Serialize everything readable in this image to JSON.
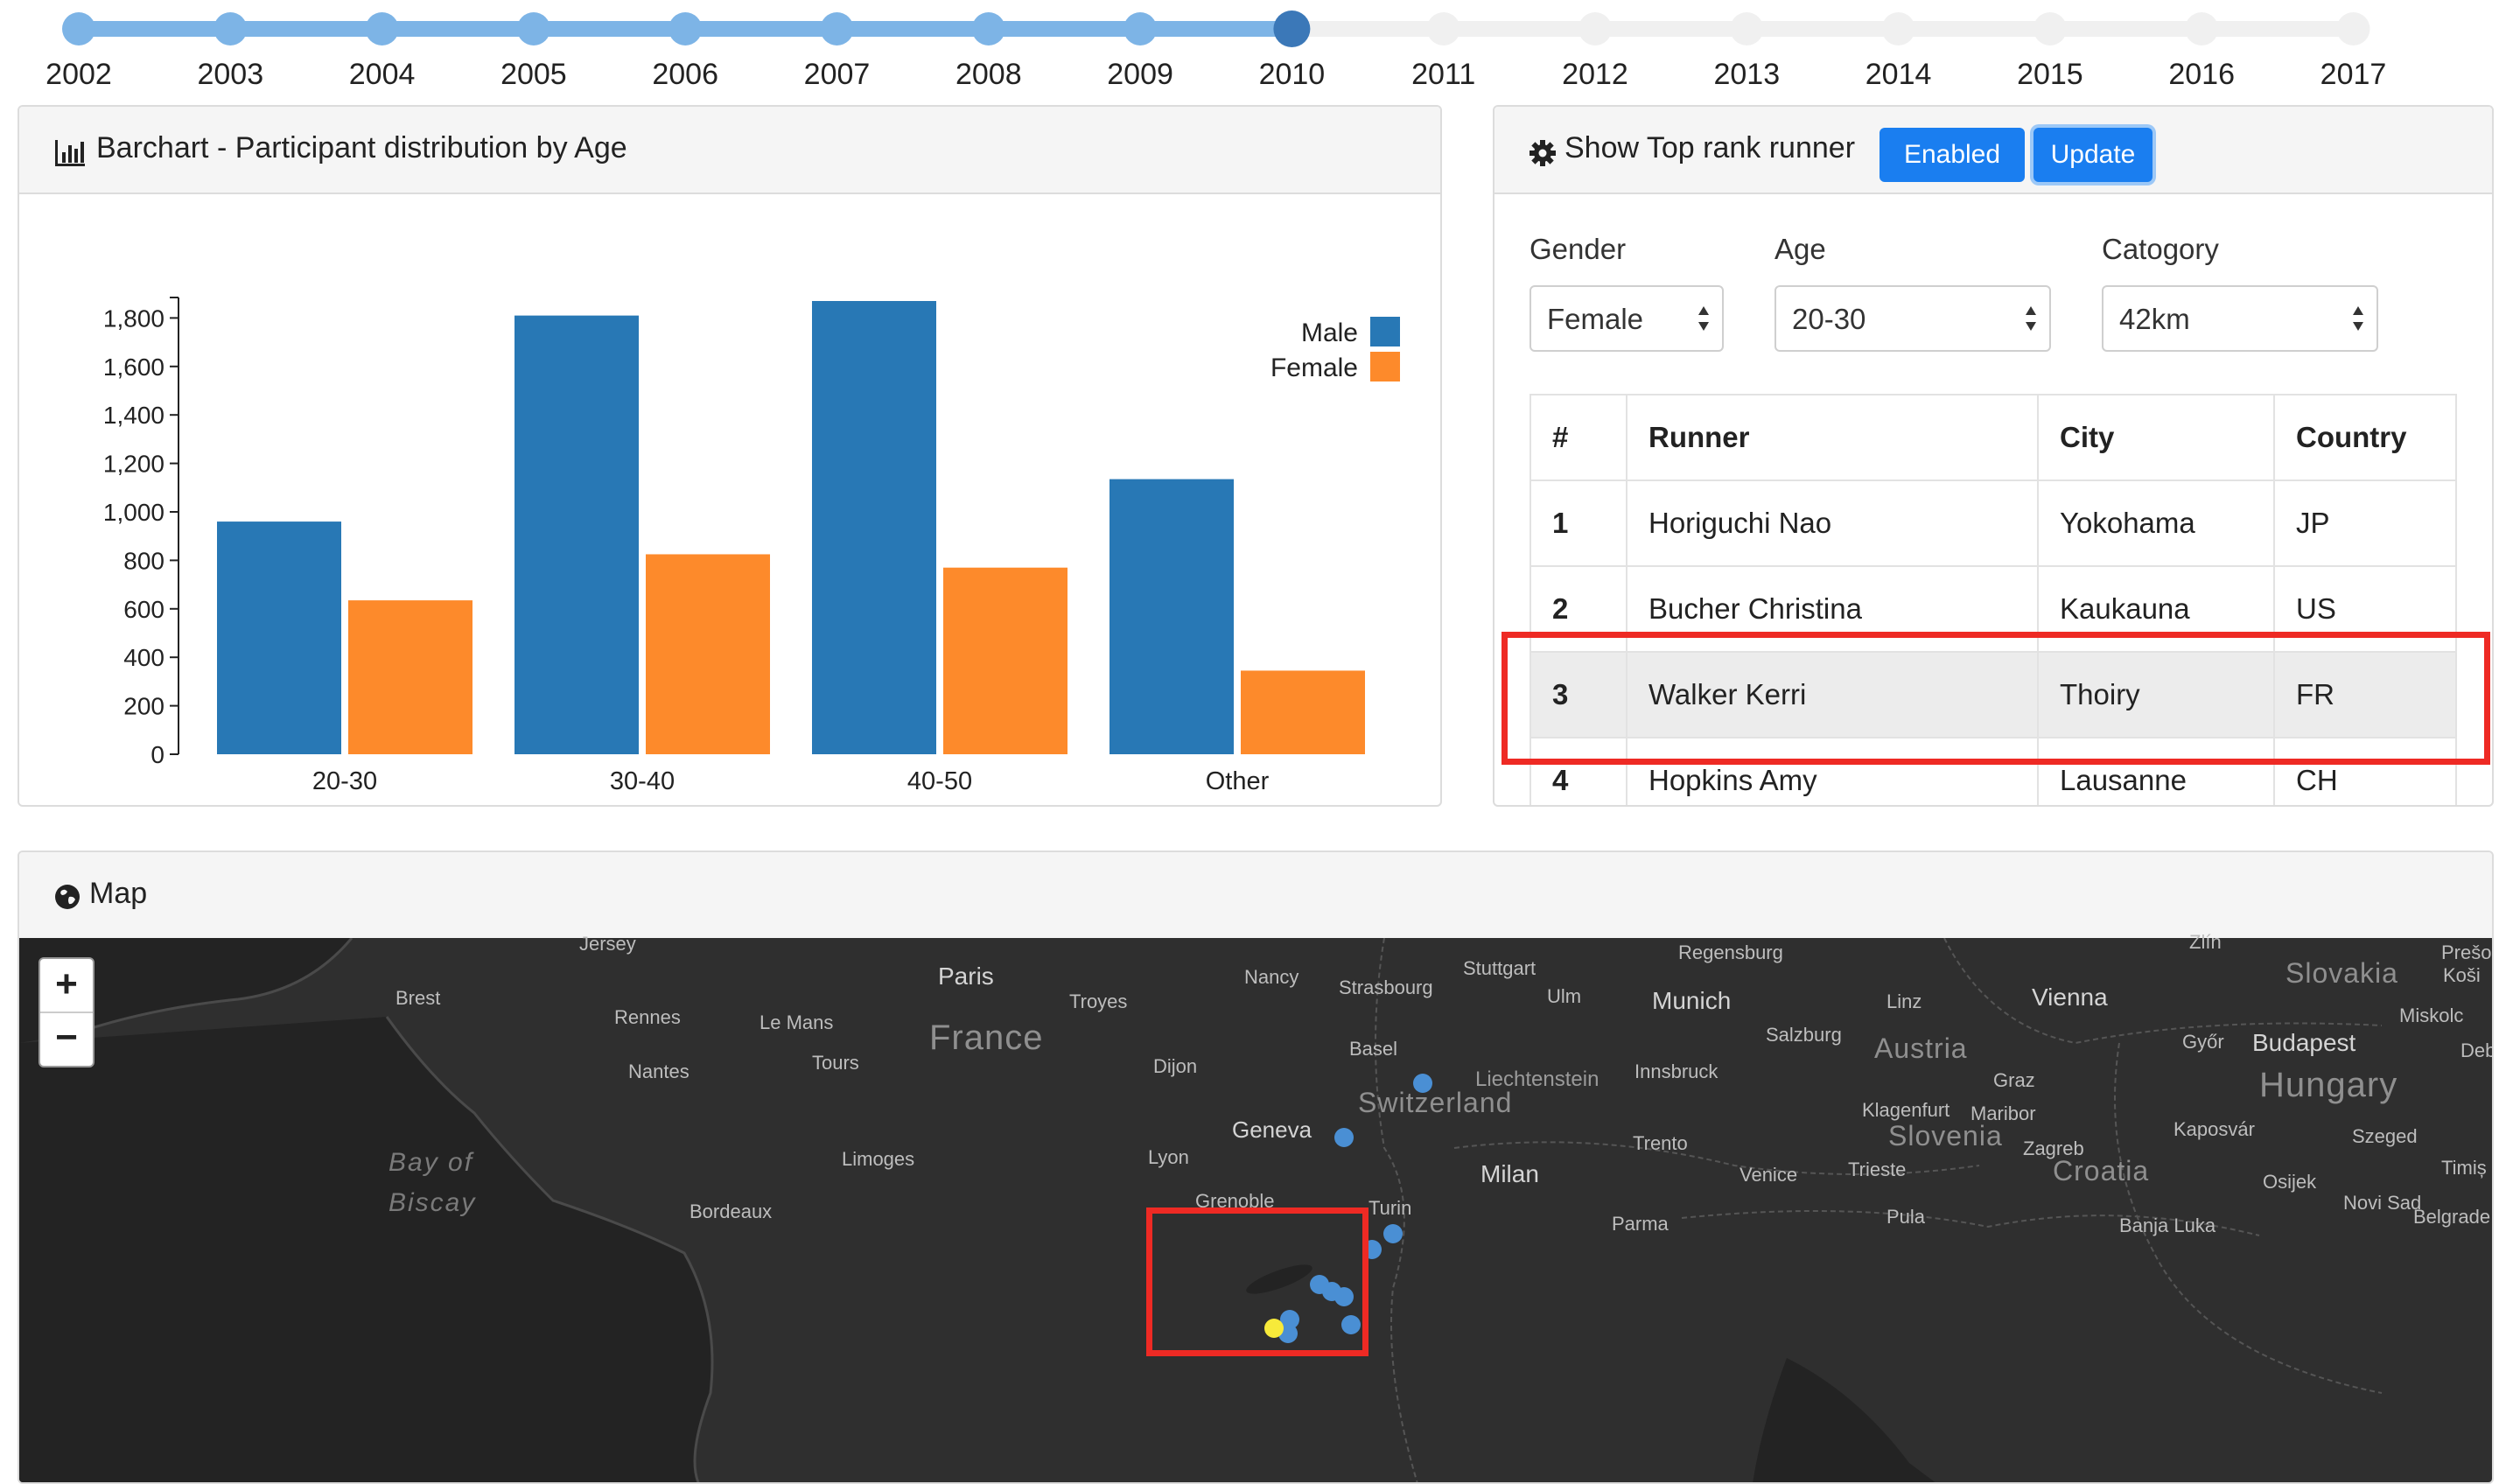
{
  "timeline": {
    "years": [
      "2002",
      "2003",
      "2004",
      "2005",
      "2006",
      "2007",
      "2008",
      "2009",
      "2010",
      "2011",
      "2012",
      "2013",
      "2014",
      "2015",
      "2016",
      "2017"
    ],
    "selected": "2010",
    "active_color": "#7db4e6",
    "selected_color": "#3b78b8",
    "inactive_color": "#f0f0f0"
  },
  "barchart": {
    "title": "Barchart - Participant distribution by Age",
    "icon": "bar-chart-icon"
  },
  "chart_data": {
    "type": "bar",
    "categories": [
      "20-30",
      "30-40",
      "40-50",
      "Other"
    ],
    "series": [
      {
        "name": "Male",
        "color": "#2878b5",
        "values": [
          960,
          1810,
          1870,
          1135
        ]
      },
      {
        "name": "Female",
        "color": "#fd8a2b",
        "values": [
          635,
          825,
          770,
          345
        ]
      }
    ],
    "ylim": [
      0,
      1870
    ],
    "yticks": [
      0,
      200,
      400,
      600,
      800,
      1000,
      1200,
      1400,
      1600,
      1800
    ],
    "ytick_labels": [
      "0",
      "200",
      "400",
      "600",
      "800",
      "1,000",
      "1,200",
      "1,400",
      "1,600",
      "1,800"
    ],
    "legend_position": "top-right",
    "grid": false
  },
  "rank": {
    "title": "Show Top rank runner",
    "icon": "gear-icon",
    "enabled_label": "Enabled",
    "update_label": "Update",
    "filters": {
      "gender": {
        "label": "Gender",
        "value": "Female"
      },
      "age": {
        "label": "Age",
        "value": "20-30"
      },
      "category": {
        "label": "Catogory",
        "value": "42km"
      }
    },
    "table": {
      "headers": [
        "#",
        "Runner",
        "City",
        "Country"
      ],
      "rows": [
        {
          "rank": "1",
          "runner": "Horiguchi Nao",
          "city": "Yokohama",
          "country": "JP"
        },
        {
          "rank": "2",
          "runner": "Bucher Christina",
          "city": "Kaukauna",
          "country": "US"
        },
        {
          "rank": "3",
          "runner": "Walker Kerri",
          "city": "Thoiry",
          "country": "FR"
        },
        {
          "rank": "4",
          "runner": "Hopkins Amy",
          "city": "Lausanne",
          "country": "CH"
        }
      ],
      "highlighted_rank": "3"
    }
  },
  "map": {
    "title": "Map",
    "icon": "globe-icon",
    "zoom_in": "+",
    "zoom_out": "−",
    "labels": {
      "jersey": "Jersey",
      "brest": "Brest",
      "rennes": "Rennes",
      "le_mans": "Le Mans",
      "paris": "Paris",
      "nancy": "Nancy",
      "strasbourg": "Strasbourg",
      "stuttgart": "Stuttgart",
      "troyes": "Troyes",
      "france": "France",
      "tours": "Tours",
      "nantes": "Nantes",
      "dijon": "Dijon",
      "basel": "Basel",
      "ulm": "Ulm",
      "munich": "Munich",
      "regensburg": "Regensburg",
      "linz": "Linz",
      "vienna": "Vienna",
      "salzburg": "Salzburg",
      "austria": "Austria",
      "innsbruck": "Innsbruck",
      "liechtenstein": "Liechtenstein",
      "switzerland": "Switzerland",
      "geneva": "Geneva",
      "lyon": "Lyon",
      "limoges": "Limoges",
      "bay_of": "Bay of",
      "biscay": "Biscay",
      "bordeaux": "Bordeaux",
      "grenoble": "Grenoble",
      "turin": "Turin",
      "milan": "Milan",
      "trento": "Trento",
      "venice": "Venice",
      "trieste": "Trieste",
      "graz": "Graz",
      "klagenfurt": "Klagenfurt",
      "maribor": "Maribor",
      "slovenia": "Slovenia",
      "zagreb": "Zagreb",
      "croatia": "Croatia",
      "gyor": "Győr",
      "budapest": "Budapest",
      "hungary": "Hungary",
      "slovakia": "Slovakia",
      "presov": "Prešo",
      "kosice": "Koši",
      "miskolc": "Miskolc",
      "deb": "Deb",
      "kaposvar": "Kaposvár",
      "szeged": "Szeged",
      "osijek": "Osijek",
      "timis": "Timiș",
      "novi_sad": "Novi Sad",
      "belgrade": "Belgrade",
      "parma": "Parma",
      "pula": "Pula",
      "banja_luka": "Banja Luka",
      "zlin": "Zlín"
    }
  }
}
